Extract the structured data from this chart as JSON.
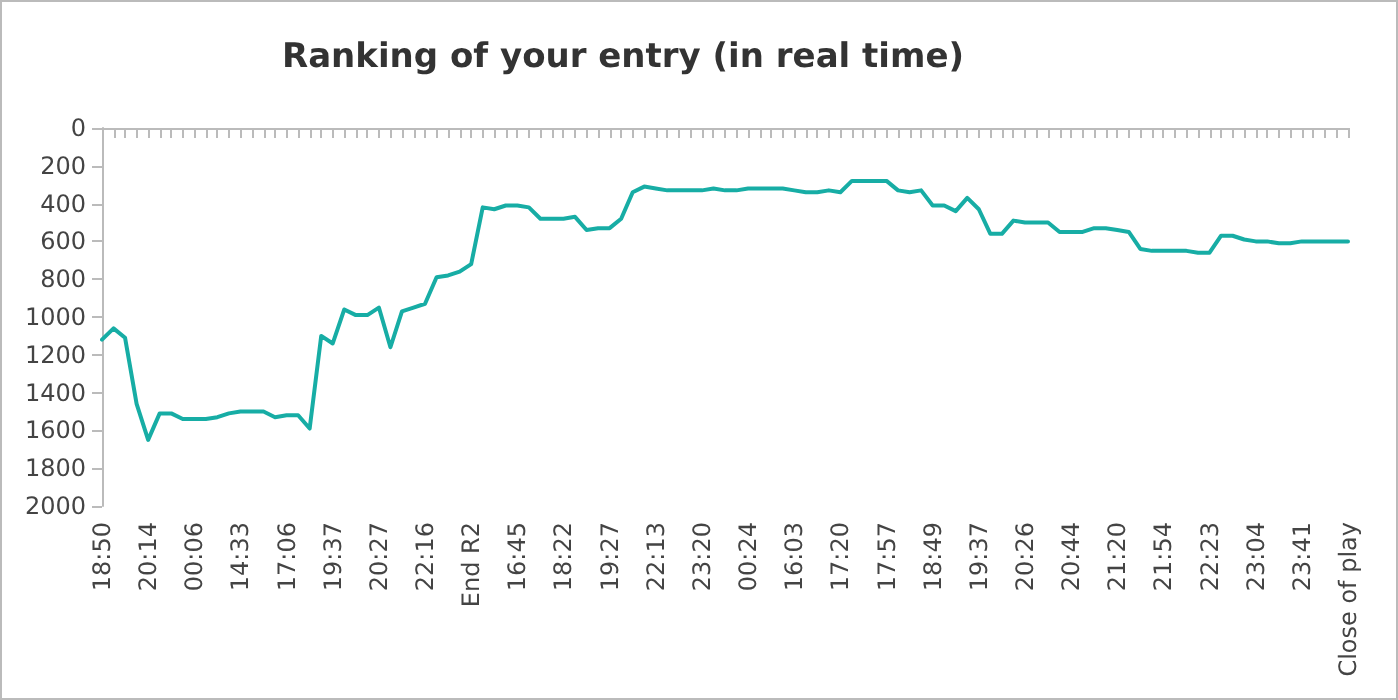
{
  "chart_data": {
    "type": "line",
    "title": "Ranking of your entry (in real time)",
    "categories": [
      "18:50",
      null,
      null,
      null,
      "20:14",
      null,
      null,
      null,
      "00:06",
      null,
      null,
      null,
      "14:33",
      null,
      null,
      null,
      "17:06",
      null,
      null,
      null,
      "19:37",
      null,
      null,
      null,
      "20:27",
      null,
      null,
      null,
      "22:16",
      null,
      null,
      null,
      "End R2",
      null,
      null,
      null,
      "16:45",
      null,
      null,
      null,
      "18:22",
      null,
      null,
      null,
      "19:27",
      null,
      null,
      null,
      "22:13",
      null,
      null,
      null,
      "23:20",
      null,
      null,
      null,
      "00:24",
      null,
      null,
      null,
      "16:03",
      null,
      null,
      null,
      "17:20",
      null,
      null,
      null,
      "17:57",
      null,
      null,
      null,
      "18:49",
      null,
      null,
      null,
      "19:37",
      null,
      null,
      null,
      "20:26",
      null,
      null,
      null,
      "20:44",
      null,
      null,
      null,
      "21:20",
      null,
      null,
      null,
      "21:54",
      null,
      null,
      null,
      "22:23",
      null,
      null,
      null,
      "23:04",
      null,
      null,
      null,
      "23:41",
      null,
      null,
      null,
      "Close of play"
    ],
    "series": [
      {
        "color": "#17ada5",
        "values": [
          1120,
          1060,
          1110,
          1460,
          1650,
          1510,
          1510,
          1540,
          1540,
          1540,
          1530,
          1510,
          1500,
          1500,
          1500,
          1530,
          1520,
          1520,
          1590,
          1100,
          1140,
          960,
          990,
          990,
          950,
          1160,
          970,
          950,
          930,
          790,
          780,
          760,
          720,
          420,
          430,
          410,
          410,
          420,
          480,
          480,
          480,
          470,
          540,
          530,
          530,
          480,
          340,
          310,
          320,
          330,
          330,
          330,
          330,
          320,
          330,
          330,
          320,
          320,
          320,
          320,
          330,
          340,
          340,
          330,
          340,
          280,
          280,
          280,
          280,
          330,
          340,
          330,
          410,
          410,
          440,
          370,
          430,
          560,
          560,
          490,
          500,
          500,
          500,
          550,
          550,
          550,
          530,
          530,
          540,
          550,
          640,
          650,
          650,
          650,
          650,
          660,
          660,
          570,
          570,
          590,
          600,
          600,
          610,
          610,
          600,
          600,
          600,
          600,
          600
        ]
      }
    ],
    "ylim": [
      2000,
      0
    ],
    "yticks": [
      0,
      200,
      400,
      600,
      800,
      1000,
      1200,
      1400,
      1600,
      1800,
      2000
    ],
    "grid": false,
    "marker": "none",
    "line_style": "solid"
  }
}
